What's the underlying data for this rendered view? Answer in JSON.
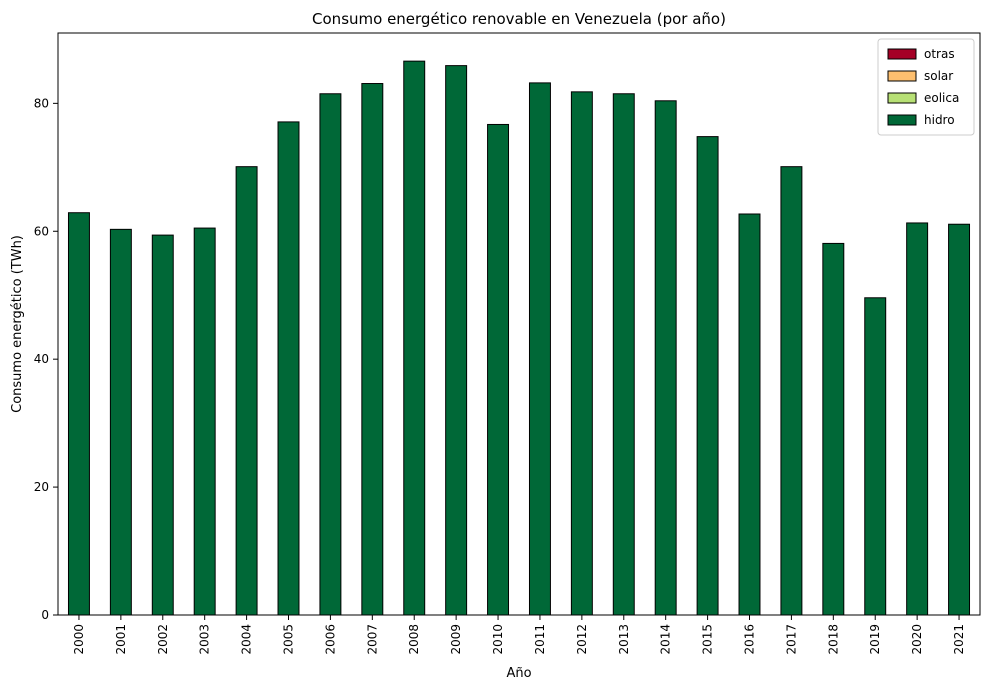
{
  "chart_data": {
    "type": "bar",
    "stacked": true,
    "title": "Consumo energético renovable en Venezuela (por año)",
    "xlabel": "Año",
    "ylabel": "Consumo energético (TWh)",
    "ylim": [
      0,
      91
    ],
    "yticks": [
      0,
      20,
      40,
      60,
      80
    ],
    "grid": false,
    "legend_position": "top-right",
    "categories": [
      "2000",
      "2001",
      "2002",
      "2003",
      "2004",
      "2005",
      "2006",
      "2007",
      "2008",
      "2009",
      "2010",
      "2011",
      "2012",
      "2013",
      "2014",
      "2015",
      "2016",
      "2017",
      "2018",
      "2019",
      "2020",
      "2021"
    ],
    "series": [
      {
        "name": "hidro",
        "color": "#006837",
        "values": [
          62.9,
          60.3,
          59.4,
          60.5,
          70.1,
          77.1,
          81.5,
          83.1,
          86.6,
          85.9,
          76.7,
          83.2,
          81.8,
          81.5,
          80.4,
          74.8,
          62.7,
          70.1,
          58.1,
          49.6,
          61.3,
          61.1
        ]
      },
      {
        "name": "eolica",
        "color": "#b7e075",
        "values": [
          0,
          0,
          0,
          0,
          0,
          0,
          0,
          0,
          0,
          0,
          0,
          0,
          0,
          0,
          0,
          0,
          0,
          0,
          0,
          0,
          0,
          0
        ]
      },
      {
        "name": "solar",
        "color": "#fdbf6f",
        "values": [
          0,
          0,
          0,
          0,
          0,
          0,
          0,
          0,
          0,
          0,
          0,
          0,
          0,
          0,
          0,
          0,
          0,
          0,
          0,
          0,
          0,
          0
        ]
      },
      {
        "name": "otras",
        "color": "#a50026",
        "values": [
          0,
          0,
          0,
          0,
          0,
          0,
          0,
          0,
          0,
          0,
          0,
          0,
          0,
          0,
          0,
          0,
          0,
          0,
          0,
          0,
          0,
          0
        ]
      }
    ],
    "legend_order": [
      "otras",
      "solar",
      "eolica",
      "hidro"
    ]
  }
}
